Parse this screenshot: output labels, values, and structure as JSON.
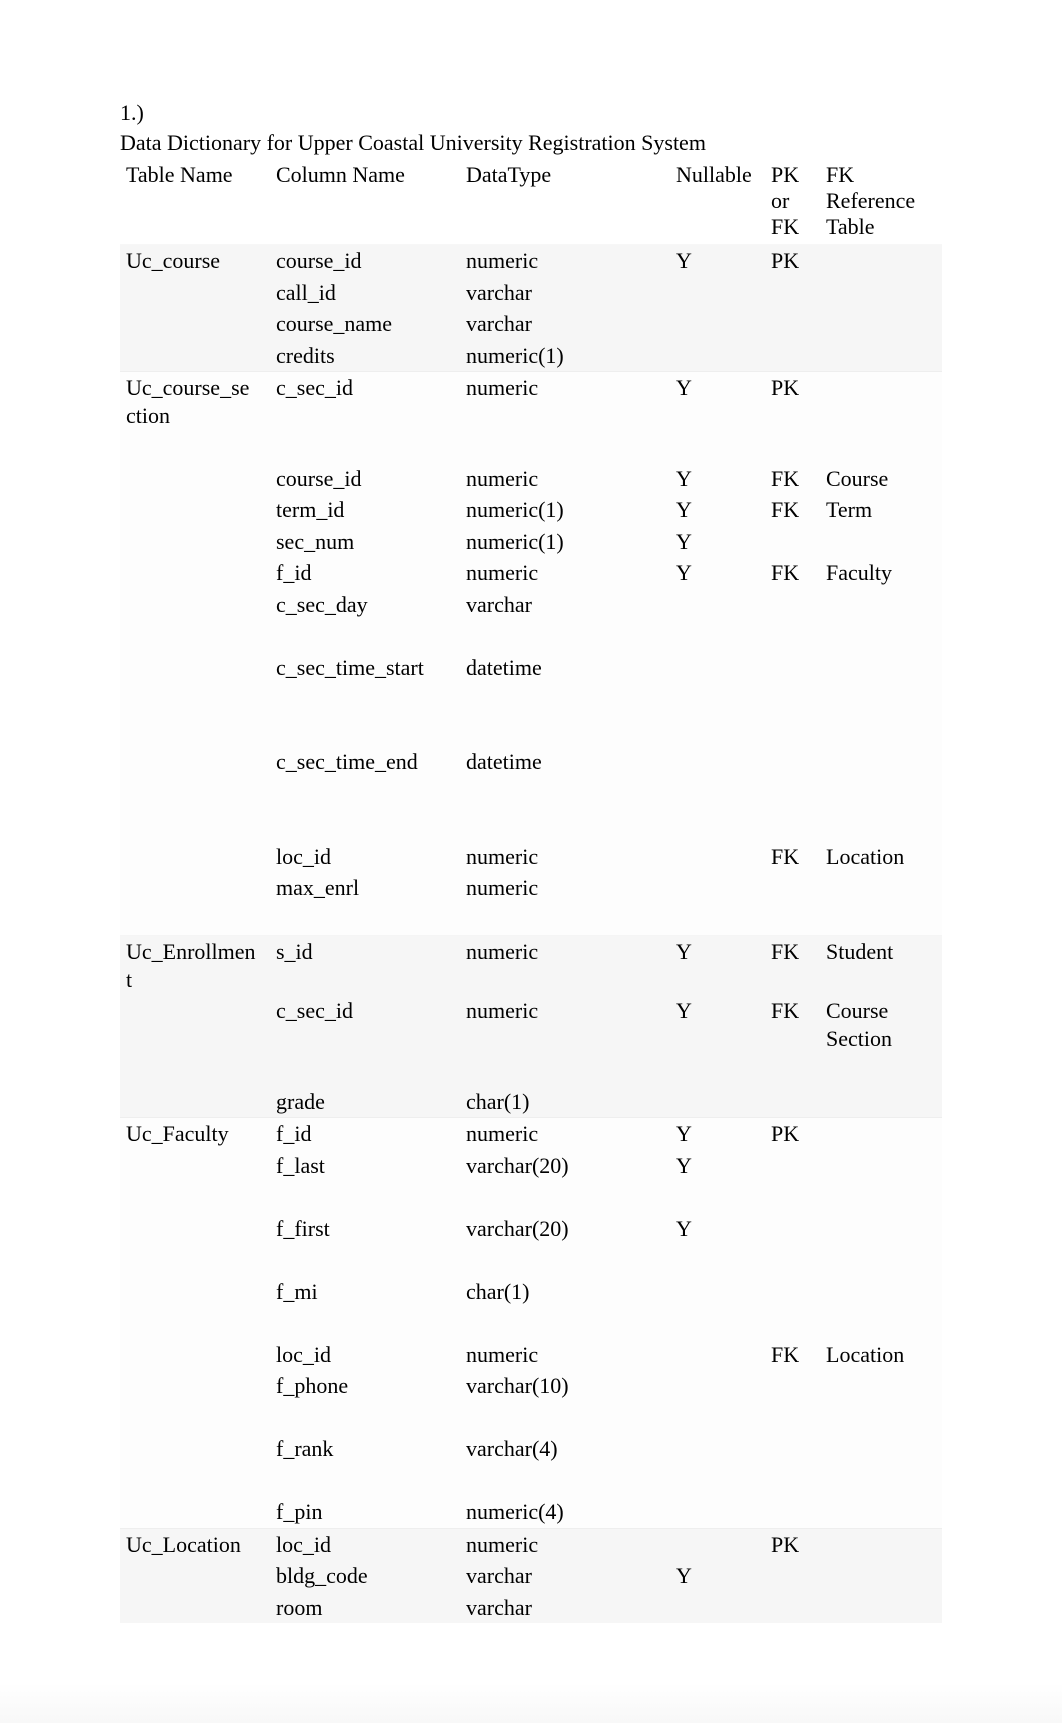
{
  "heading_number": "1.)",
  "heading_title": "Data Dictionary for Upper Coastal University Registration System",
  "columns": {
    "table_name": "Table Name",
    "column_name": "Column Name",
    "datatype": "DataType",
    "nullable": "Nullable",
    "pk_fk": "PK or FK",
    "fk_ref": "FK Reference Table"
  },
  "rows": [
    {
      "table": "Uc_course",
      "column": "course_id",
      "type": "numeric",
      "nullable": "Y",
      "pkfk": "PK",
      "ref": "",
      "shade": "b",
      "group_start": true,
      "pad_after": 0
    },
    {
      "table": "",
      "column": "call_id",
      "type": "varchar",
      "nullable": "",
      "pkfk": "",
      "ref": "",
      "shade": "b",
      "group_start": false,
      "pad_after": 0
    },
    {
      "table": "",
      "column": "course_name",
      "type": "varchar",
      "nullable": "",
      "pkfk": "",
      "ref": "",
      "shade": "b",
      "group_start": false,
      "pad_after": 0
    },
    {
      "table": "",
      "column": "credits",
      "type": "numeric(1)",
      "nullable": "",
      "pkfk": "",
      "ref": "",
      "shade": "b",
      "group_start": false,
      "pad_after": 0
    },
    {
      "table": "Uc_course_section",
      "column": "c_sec_id",
      "type": "numeric",
      "nullable": "Y",
      "pkfk": "PK",
      "ref": "",
      "shade": "a",
      "group_start": true,
      "pad_after": 1
    },
    {
      "table": "",
      "column": "course_id",
      "type": "numeric",
      "nullable": "Y",
      "pkfk": "FK",
      "ref": "Course",
      "shade": "a",
      "group_start": false,
      "pad_after": 0
    },
    {
      "table": "",
      "column": "term_id",
      "type": "numeric(1)",
      "nullable": "Y",
      "pkfk": "FK",
      "ref": "Term",
      "shade": "a",
      "group_start": false,
      "pad_after": 0
    },
    {
      "table": "",
      "column": "sec_num",
      "type": "numeric(1)",
      "nullable": "Y",
      "pkfk": "",
      "ref": "",
      "shade": "a",
      "group_start": false,
      "pad_after": 0
    },
    {
      "table": "",
      "column": "f_id",
      "type": "numeric",
      "nullable": "Y",
      "pkfk": "FK",
      "ref": "Faculty",
      "shade": "a",
      "group_start": false,
      "pad_after": 0
    },
    {
      "table": "",
      "column": "c_sec_day",
      "type": "varchar",
      "nullable": "",
      "pkfk": "",
      "ref": "",
      "shade": "a",
      "group_start": false,
      "pad_after": 1
    },
    {
      "table": "",
      "column": "c_sec_time_start",
      "type": "datetime",
      "nullable": "",
      "pkfk": "",
      "ref": "",
      "shade": "a",
      "group_start": false,
      "pad_after": 2
    },
    {
      "table": "",
      "column": "c_sec_time_end",
      "type": "datetime",
      "nullable": "",
      "pkfk": "",
      "ref": "",
      "shade": "a",
      "group_start": false,
      "pad_after": 2
    },
    {
      "table": "",
      "column": "loc_id",
      "type": "numeric",
      "nullable": "",
      "pkfk": "FK",
      "ref": "Location",
      "shade": "a",
      "group_start": false,
      "pad_after": 0
    },
    {
      "table": "",
      "column": "max_enrl",
      "type": "numeric",
      "nullable": "",
      "pkfk": "",
      "ref": "",
      "shade": "a",
      "group_start": false,
      "pad_after": 1
    },
    {
      "table": "Uc_Enrollment",
      "column": "s_id",
      "type": "numeric",
      "nullable": "Y",
      "pkfk": "FK",
      "ref": "Student",
      "shade": "b",
      "group_start": true,
      "pad_after": 0
    },
    {
      "table": "",
      "column": "c_sec_id",
      "type": "numeric",
      "nullable": "Y",
      "pkfk": "FK",
      "ref": "Course Section",
      "shade": "b",
      "group_start": false,
      "pad_after": 1
    },
    {
      "table": "",
      "column": "grade",
      "type": "char(1)",
      "nullable": "",
      "pkfk": "",
      "ref": "",
      "shade": "b",
      "group_start": false,
      "pad_after": 0
    },
    {
      "table": "Uc_Faculty",
      "column": "f_id",
      "type": "numeric",
      "nullable": "Y",
      "pkfk": "PK",
      "ref": "",
      "shade": "a",
      "group_start": true,
      "pad_after": 0
    },
    {
      "table": "",
      "column": "f_last",
      "type": "varchar(20)",
      "nullable": "Y",
      "pkfk": "",
      "ref": "",
      "shade": "a",
      "group_start": false,
      "pad_after": 1
    },
    {
      "table": "",
      "column": "f_first",
      "type": "varchar(20)",
      "nullable": "Y",
      "pkfk": "",
      "ref": "",
      "shade": "a",
      "group_start": false,
      "pad_after": 1
    },
    {
      "table": "",
      "column": "f_mi",
      "type": "char(1)",
      "nullable": "",
      "pkfk": "",
      "ref": "",
      "shade": "a",
      "group_start": false,
      "pad_after": 1
    },
    {
      "table": "",
      "column": "loc_id",
      "type": "numeric",
      "nullable": "",
      "pkfk": "FK",
      "ref": "Location",
      "shade": "a",
      "group_start": false,
      "pad_after": 0
    },
    {
      "table": "",
      "column": "f_phone",
      "type": "varchar(10)",
      "nullable": "",
      "pkfk": "",
      "ref": "",
      "shade": "a",
      "group_start": false,
      "pad_after": 1
    },
    {
      "table": "",
      "column": "f_rank",
      "type": "varchar(4)",
      "nullable": "",
      "pkfk": "",
      "ref": "",
      "shade": "a",
      "group_start": false,
      "pad_after": 1
    },
    {
      "table": "",
      "column": "f_pin",
      "type": "numeric(4)",
      "nullable": "",
      "pkfk": "",
      "ref": "",
      "shade": "a",
      "group_start": false,
      "pad_after": 0
    },
    {
      "table": "Uc_Location",
      "column": "loc_id",
      "type": "numeric",
      "nullable": "",
      "pkfk": "PK",
      "ref": "",
      "shade": "b",
      "group_start": true,
      "pad_after": 0
    },
    {
      "table": "",
      "column": "bldg_code",
      "type": "varchar",
      "nullable": "Y",
      "pkfk": "",
      "ref": "",
      "shade": "b",
      "group_start": false,
      "pad_after": 0
    },
    {
      "table": "",
      "column": "room",
      "type": "varchar",
      "nullable": "",
      "pkfk": "",
      "ref": "",
      "shade": "b",
      "group_start": false,
      "pad_after": 0
    }
  ],
  "table_name_wrap_width": 12,
  "colors": {
    "text": "#000000",
    "background": "#ffffff",
    "alt_a": "#fdfdfd",
    "alt_b": "#f6f6f6"
  },
  "font": {
    "family": "Times New Roman",
    "size_pt": 16
  }
}
